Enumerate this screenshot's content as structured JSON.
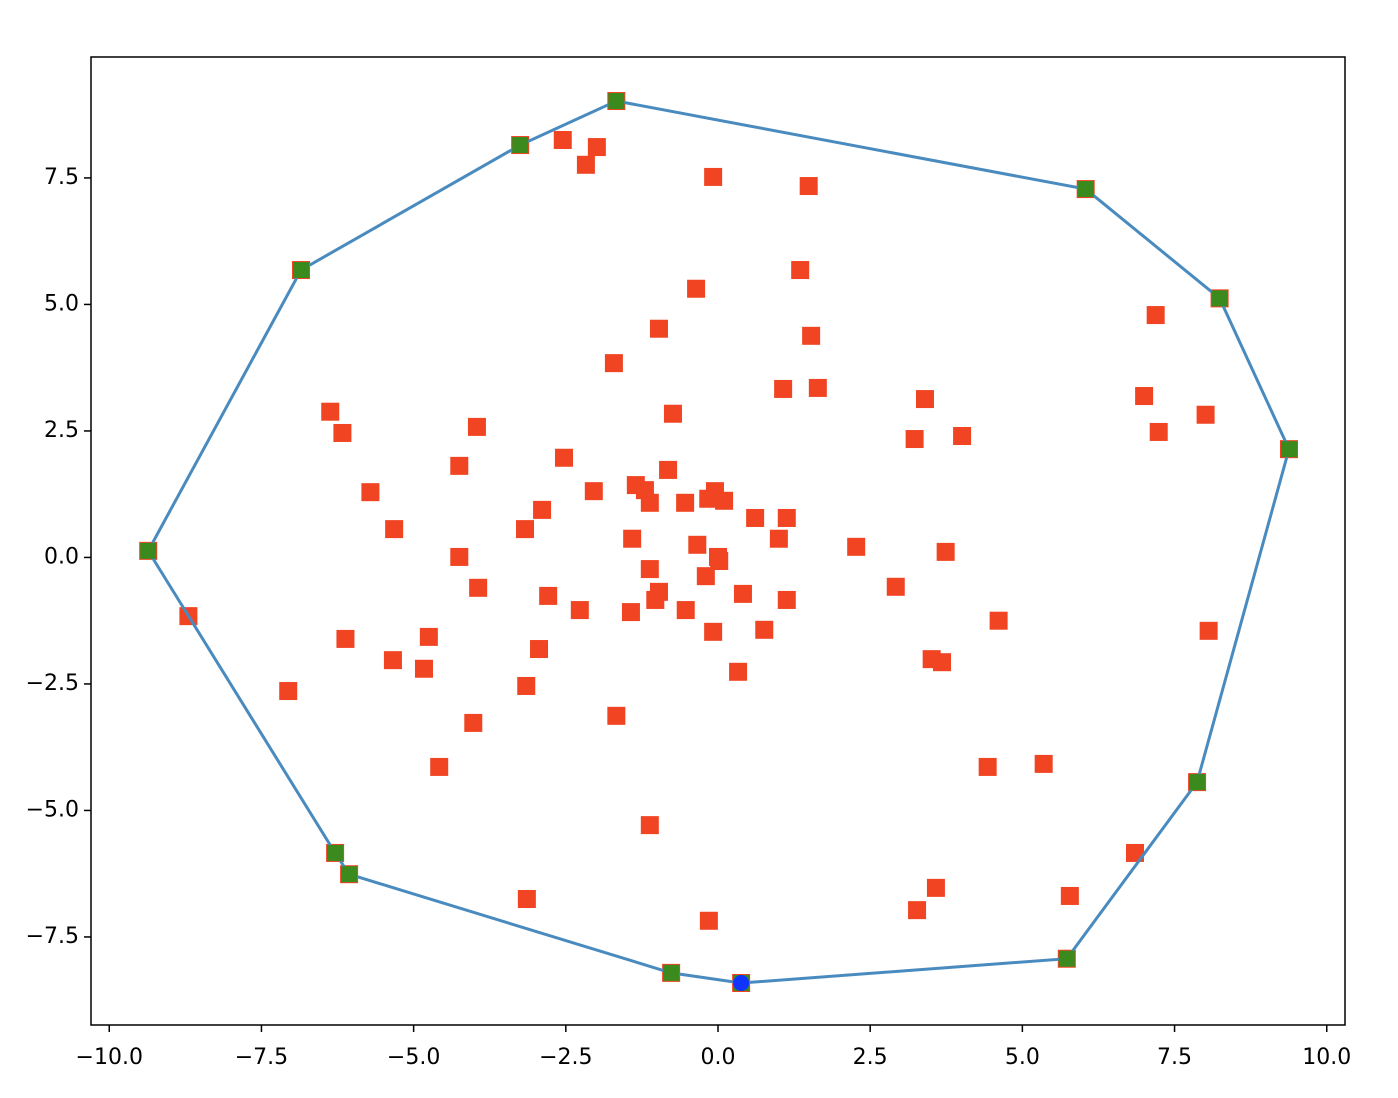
{
  "chart_data": {
    "type": "scatter",
    "xlim": [
      -10.3,
      10.3
    ],
    "ylim": [
      -9.24,
      9.89
    ],
    "xticks": [
      {
        "value": -10,
        "label": "−10.0"
      },
      {
        "value": -7.5,
        "label": "−7.5"
      },
      {
        "value": -5,
        "label": "−5.0"
      },
      {
        "value": -2.5,
        "label": "−2.5"
      },
      {
        "value": 0,
        "label": "0.0"
      },
      {
        "value": 2.5,
        "label": "2.5"
      },
      {
        "value": 5,
        "label": "5.0"
      },
      {
        "value": 7.5,
        "label": "7.5"
      },
      {
        "value": 10,
        "label": "10.0"
      }
    ],
    "yticks": [
      {
        "value": -7.5,
        "label": "−7.5"
      },
      {
        "value": -5,
        "label": "−5.0"
      },
      {
        "value": -2.5,
        "label": "−2.5"
      },
      {
        "value": 0,
        "label": "0.0"
      },
      {
        "value": 2.5,
        "label": "2.5"
      },
      {
        "value": 5,
        "label": "5.0"
      },
      {
        "value": 7.5,
        "label": "7.5"
      }
    ],
    "grid": false,
    "series": [
      {
        "marker": "square",
        "color": "#f04423",
        "x": [
          -1.67,
          -3.25,
          -2.55,
          -1.99,
          -2.17,
          -0.08,
          1.49,
          6.04,
          -6.85,
          1.35,
          8.24,
          7.19,
          -0.36,
          -0.97,
          1.53,
          -1.71,
          1.07,
          1.64,
          7.0,
          3.4,
          -0.74,
          8.01,
          -6.37,
          -6.17,
          -3.96,
          7.24,
          3.23,
          4.01,
          9.38,
          -4.25,
          -2.53,
          -0.82,
          -5.71,
          -2.04,
          -1.35,
          -1.2,
          -1.12,
          -0.54,
          -0.16,
          -0.05,
          0.1,
          -2.89,
          -5.32,
          -3.17,
          0.61,
          1.13,
          -1.41,
          1.0,
          -0.34,
          2.27,
          -9.36,
          -4.25,
          0.0,
          0.02,
          3.74,
          -1.12,
          -0.2,
          -3.94,
          2.92,
          -8.7,
          -2.79,
          -0.97,
          -1.03,
          0.41,
          1.13,
          -2.27,
          -1.43,
          -0.53,
          4.61,
          0.76,
          -0.08,
          8.06,
          -6.12,
          -4.75,
          -2.94,
          -5.34,
          -4.83,
          3.51,
          3.68,
          0.33,
          -7.06,
          -3.15,
          -1.67,
          -4.02,
          -4.58,
          4.43,
          5.35,
          7.87,
          -1.12,
          -6.29,
          6.85,
          -6.06,
          3.58,
          5.78,
          -3.14,
          3.27,
          -0.15,
          5.73,
          -0.77,
          0.38
        ],
        "y": [
          9.02,
          8.15,
          8.25,
          8.11,
          7.76,
          7.52,
          7.34,
          7.28,
          5.68,
          5.68,
          5.12,
          4.79,
          5.31,
          4.52,
          4.38,
          3.84,
          3.33,
          3.35,
          3.19,
          3.13,
          2.84,
          2.82,
          2.88,
          2.46,
          2.58,
          2.48,
          2.34,
          2.4,
          2.14,
          1.81,
          1.97,
          1.73,
          1.29,
          1.31,
          1.43,
          1.33,
          1.08,
          1.08,
          1.16,
          1.31,
          1.12,
          0.94,
          0.56,
          0.56,
          0.78,
          0.78,
          0.37,
          0.37,
          0.25,
          0.21,
          0.13,
          0.01,
          0.01,
          -0.07,
          0.11,
          -0.23,
          -0.37,
          -0.6,
          -0.58,
          -1.16,
          -0.76,
          -0.68,
          -0.84,
          -0.72,
          -0.84,
          -1.04,
          -1.08,
          -1.04,
          -1.25,
          -1.43,
          -1.47,
          -1.45,
          -1.61,
          -1.57,
          -1.81,
          -2.03,
          -2.2,
          -2.01,
          -2.07,
          -2.26,
          -2.64,
          -2.54,
          -3.13,
          -3.27,
          -4.14,
          -4.14,
          -4.08,
          -4.44,
          -5.29,
          -5.84,
          -5.84,
          -6.26,
          -6.53,
          -6.69,
          -6.75,
          -6.97,
          -7.18,
          -7.93,
          -8.21,
          -8.41
        ]
      },
      {
        "marker": "square",
        "color": "#4a8bbf",
        "marker_color": "#3a8a1e",
        "line": true,
        "closed": true,
        "x": [
          5.73,
          7.87,
          9.38,
          8.24,
          6.04,
          -1.67,
          -3.25,
          -6.85,
          -9.36,
          -6.29,
          -6.06,
          -0.77,
          0.38
        ],
        "y": [
          -7.93,
          -4.44,
          2.14,
          5.12,
          7.28,
          9.02,
          8.15,
          5.68,
          0.13,
          -5.84,
          -6.26,
          -8.21,
          -8.41
        ]
      },
      {
        "marker": "circle",
        "color": "#1033ff",
        "x": [
          0.38
        ],
        "y": [
          -8.41
        ]
      }
    ]
  }
}
